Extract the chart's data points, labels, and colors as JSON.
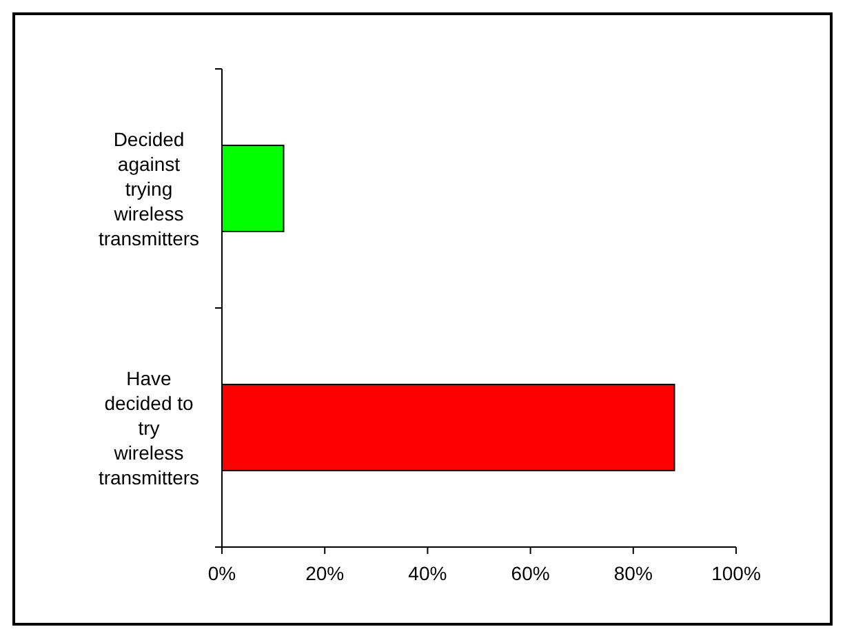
{
  "chart_data": {
    "type": "bar",
    "orientation": "horizontal",
    "categories": [
      "Decided against trying wireless transmitters",
      "Have decided to try wireless transmitters"
    ],
    "values": [
      12,
      88
    ],
    "colors": [
      "#00ff00",
      "#ff0000"
    ],
    "xlim": [
      0,
      100
    ],
    "xticks": [
      {
        "value": 0,
        "label": "0%"
      },
      {
        "value": 20,
        "label": "20%"
      },
      {
        "value": 40,
        "label": "40%"
      },
      {
        "value": 60,
        "label": "60%"
      },
      {
        "value": 80,
        "label": "80%"
      },
      {
        "value": 100,
        "label": "100%"
      }
    ],
    "grid": false
  }
}
